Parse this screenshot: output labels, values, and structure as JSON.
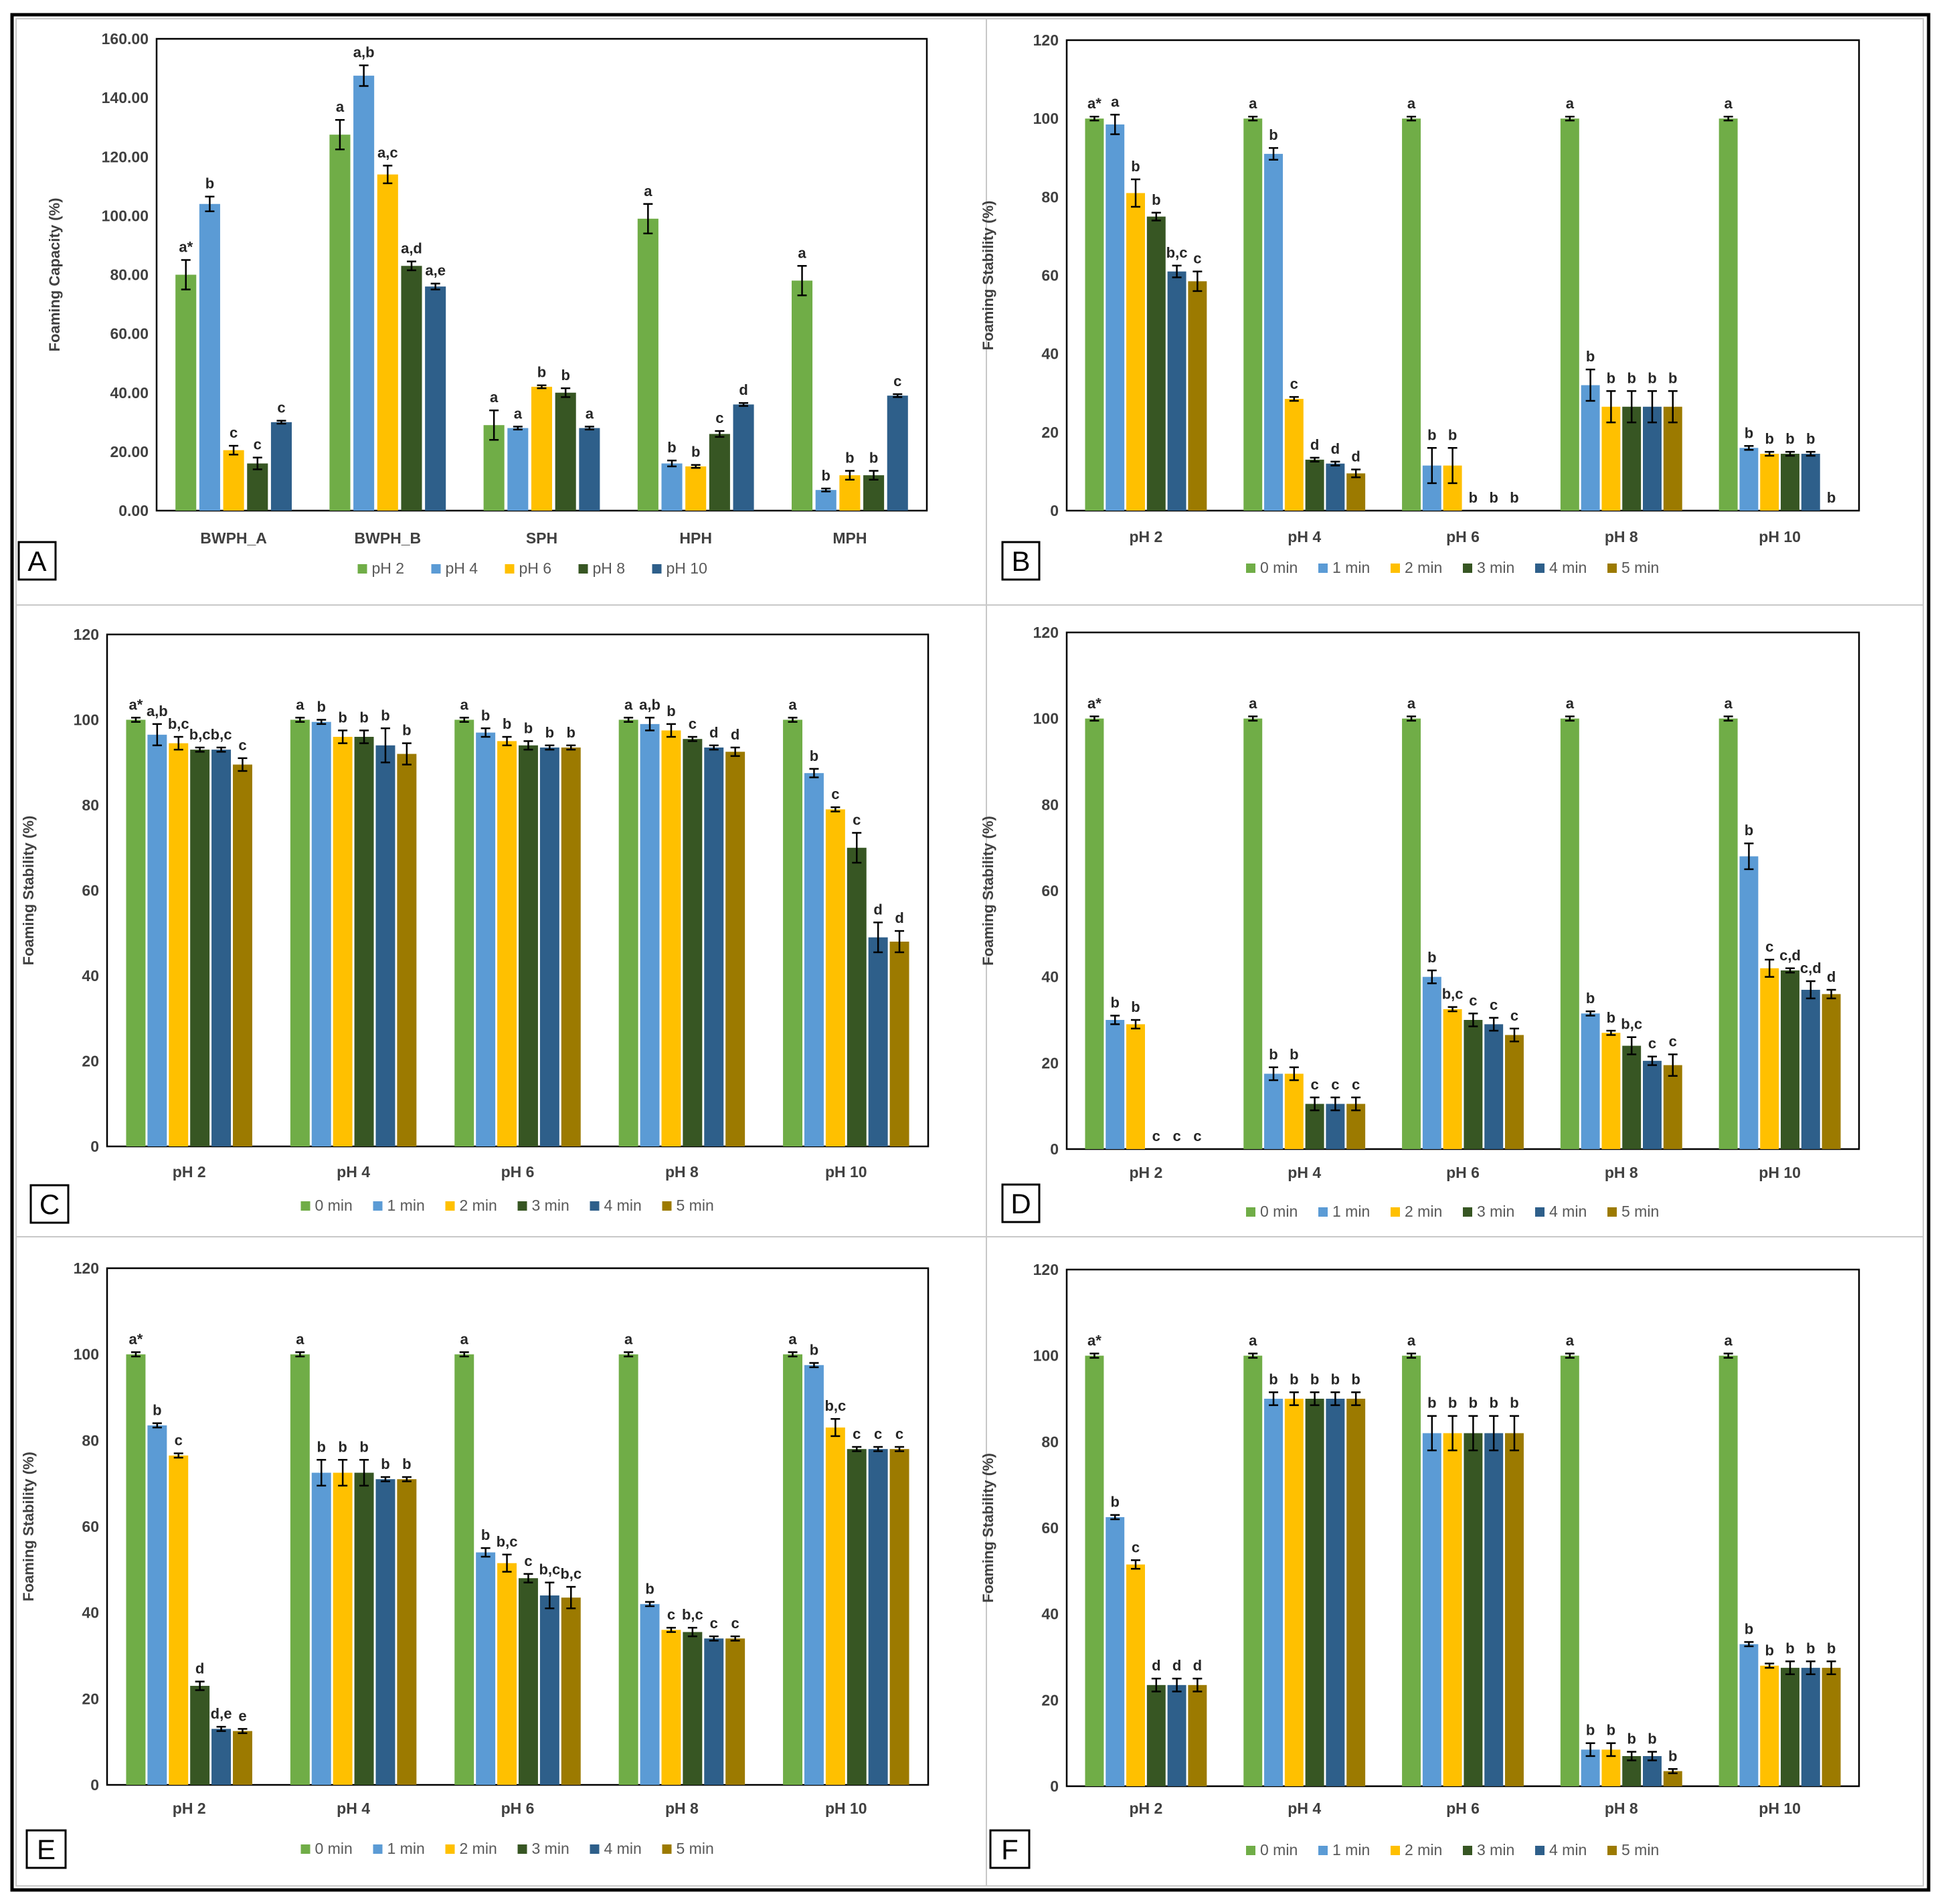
{
  "colors": {
    "pH 2": "#70ad47",
    "pH 4": "#5b9bd5",
    "pH 6": "#ffc000",
    "pH 8": "#375623",
    "pH 10": "#2e5f8a",
    "0 min": "#70ad47",
    "1 min": "#5b9bd5",
    "2 min": "#ffc000",
    "3 min": "#375623",
    "4 min": "#2e5f8a",
    "5 min": "#9c7a00"
  },
  "chart_data": [
    {
      "panel": "A",
      "type": "bar",
      "ylabel": "Foaming Capacity (%)",
      "ylim": [
        0,
        160
      ],
      "yticks": [
        "0.00",
        "20.00",
        "40.00",
        "60.00",
        "80.00",
        "100.00",
        "120.00",
        "140.00",
        "160.00"
      ],
      "categories": [
        "BWPH_A",
        "BWPH_B",
        "SPH",
        "HPH",
        "MPH"
      ],
      "series": [
        {
          "name": "pH 2",
          "values": [
            80,
            127.5,
            29,
            99,
            78
          ],
          "errors": [
            5,
            5,
            5,
            5,
            5
          ],
          "labels": [
            "a*",
            "a",
            "a",
            "a",
            "a"
          ]
        },
        {
          "name": "pH 4",
          "values": [
            104,
            147.5,
            28,
            16,
            7
          ],
          "errors": [
            2.5,
            3.5,
            0.5,
            1,
            0.5
          ],
          "labels": [
            "b",
            "a,b",
            "a",
            "b",
            "b"
          ]
        },
        {
          "name": "pH 6",
          "values": [
            20.5,
            114,
            42,
            15,
            12
          ],
          "errors": [
            1.5,
            3,
            0.5,
            0.5,
            1.5
          ],
          "labels": [
            "c",
            "a,c",
            "b",
            "b",
            "b"
          ]
        },
        {
          "name": "pH 8",
          "values": [
            16,
            83,
            40,
            26,
            12
          ],
          "errors": [
            2,
            1.5,
            1.5,
            1,
            1.5
          ],
          "labels": [
            "c",
            "a,d",
            "b",
            "c",
            "b"
          ]
        },
        {
          "name": "pH 10",
          "values": [
            30,
            76,
            28,
            36,
            39
          ],
          "errors": [
            0.5,
            1,
            0.5,
            0.5,
            0.5
          ],
          "labels": [
            "c",
            "a,e",
            "a",
            "d",
            "c"
          ]
        }
      ]
    },
    {
      "panel": "B",
      "type": "bar",
      "ylabel": "Foaming Stability (%)",
      "ylim": [
        0,
        120
      ],
      "yticks": [
        "0",
        "20",
        "40",
        "60",
        "80",
        "100",
        "120"
      ],
      "categories": [
        "pH 2",
        "pH 4",
        "pH 6",
        "pH 8",
        "pH 10"
      ],
      "series": [
        {
          "name": "0 min",
          "values": [
            100,
            100,
            100,
            100,
            100
          ],
          "errors": [
            0.5,
            0.5,
            0.5,
            0.5,
            0.5
          ],
          "labels": [
            "a*",
            "a",
            "a",
            "a",
            "a"
          ]
        },
        {
          "name": "1 min",
          "values": [
            98.5,
            91,
            11.5,
            32,
            16
          ],
          "errors": [
            2.5,
            1.5,
            4.5,
            4,
            0.5
          ],
          "labels": [
            "a",
            "b",
            "b",
            "b",
            "b"
          ]
        },
        {
          "name": "2 min",
          "values": [
            81,
            28.5,
            11.5,
            26.5,
            14.5
          ],
          "errors": [
            3.5,
            0.5,
            4.5,
            4,
            0.5
          ],
          "labels": [
            "b",
            "c",
            "b",
            "b",
            "b"
          ]
        },
        {
          "name": "3 min",
          "values": [
            75,
            13,
            0,
            26.5,
            14.5
          ],
          "errors": [
            1,
            0.5,
            0,
            4,
            0.5
          ],
          "labels": [
            "b",
            "d",
            "b",
            "b",
            "b"
          ]
        },
        {
          "name": "4 min",
          "values": [
            61,
            12,
            0,
            26.5,
            14.5
          ],
          "errors": [
            1.5,
            0.5,
            0,
            4,
            0.5
          ],
          "labels": [
            "b,c",
            "d",
            "b",
            "b",
            "b"
          ]
        },
        {
          "name": "5 min",
          "values": [
            58.5,
            9.5,
            0,
            26.5,
            0
          ],
          "errors": [
            2.5,
            1,
            0,
            4,
            0
          ],
          "labels": [
            "c",
            "d",
            "b",
            "b",
            "b"
          ]
        }
      ]
    },
    {
      "panel": "C",
      "type": "bar",
      "ylabel": "Foaming Stability (%)",
      "ylim": [
        0,
        120
      ],
      "yticks": [
        "0",
        "20",
        "40",
        "60",
        "80",
        "100",
        "120"
      ],
      "categories": [
        "pH 2",
        "pH 4",
        "pH 6",
        "pH 8",
        "pH 10"
      ],
      "series": [
        {
          "name": "0 min",
          "values": [
            100,
            100,
            100,
            100,
            100
          ],
          "errors": [
            0.5,
            0.5,
            0.5,
            0.5,
            0.5
          ],
          "labels": [
            "a*",
            "a",
            "a",
            "a",
            "a"
          ]
        },
        {
          "name": "1 min",
          "values": [
            96.5,
            99.5,
            97,
            99,
            87.5
          ],
          "errors": [
            2.5,
            0.5,
            1,
            1.5,
            1
          ],
          "labels": [
            "a,b",
            "b",
            "b",
            "a,b",
            "b"
          ]
        },
        {
          "name": "2 min",
          "values": [
            94.5,
            96,
            95,
            97.5,
            79
          ],
          "errors": [
            1.5,
            1.5,
            1,
            1.5,
            0.5
          ],
          "labels": [
            "b,c",
            "b",
            "b",
            "b",
            "c"
          ]
        },
        {
          "name": "3 min",
          "values": [
            93,
            96,
            94,
            95.5,
            70
          ],
          "errors": [
            0.5,
            1.5,
            1,
            0.5,
            3.5
          ],
          "labels": [
            "b,c",
            "b",
            "b",
            "c",
            "c"
          ]
        },
        {
          "name": "4 min",
          "values": [
            93,
            94,
            93.5,
            93.5,
            49
          ],
          "errors": [
            0.5,
            4,
            0.5,
            0.5,
            3.5
          ],
          "labels": [
            "b,c",
            "b",
            "b",
            "d",
            "d"
          ]
        },
        {
          "name": "5 min",
          "values": [
            89.5,
            92,
            93.5,
            92.5,
            48
          ],
          "errors": [
            1.5,
            2.5,
            0.5,
            1,
            2.5
          ],
          "labels": [
            "c",
            "b",
            "b",
            "d",
            "d"
          ]
        }
      ]
    },
    {
      "panel": "D",
      "type": "bar",
      "ylabel": "Foaming Stability (%)",
      "ylim": [
        0,
        120
      ],
      "yticks": [
        "0",
        "20",
        "40",
        "60",
        "80",
        "100",
        "120"
      ],
      "categories": [
        "pH 2",
        "pH 4",
        "pH 6",
        "pH 8",
        "pH 10"
      ],
      "series": [
        {
          "name": "0 min",
          "values": [
            100,
            100,
            100,
            100,
            100
          ],
          "errors": [
            0.5,
            0.5,
            0.5,
            0.5,
            0.5
          ],
          "labels": [
            "a*",
            "a",
            "a",
            "a",
            "a"
          ]
        },
        {
          "name": "1 min",
          "values": [
            30,
            17.5,
            40,
            31.5,
            68
          ],
          "errors": [
            1,
            1.5,
            1.5,
            0.5,
            3
          ],
          "labels": [
            "b",
            "b",
            "b",
            "b",
            "b"
          ]
        },
        {
          "name": "2 min",
          "values": [
            29,
            17.5,
            32.5,
            27,
            42
          ],
          "errors": [
            1,
            1.5,
            0.5,
            0.5,
            2
          ],
          "labels": [
            "b",
            "b",
            "b,c",
            "b",
            "c"
          ]
        },
        {
          "name": "3 min",
          "values": [
            0,
            10.5,
            30,
            24,
            41.5
          ],
          "errors": [
            0,
            1.5,
            1.5,
            2,
            0.5
          ],
          "labels": [
            "c",
            "c",
            "c",
            "b,c",
            "c,d"
          ]
        },
        {
          "name": "4 min",
          "values": [
            0,
            10.5,
            29,
            20.5,
            37
          ],
          "errors": [
            0,
            1.5,
            1.5,
            1,
            2
          ],
          "labels": [
            "c",
            "c",
            "c",
            "c",
            "c,d"
          ]
        },
        {
          "name": "5 min",
          "values": [
            0,
            10.5,
            26.5,
            19.5,
            36
          ],
          "errors": [
            0,
            1.5,
            1.5,
            2.5,
            1
          ],
          "labels": [
            "c",
            "c",
            "c",
            "c",
            "d"
          ]
        }
      ]
    },
    {
      "panel": "E",
      "type": "bar",
      "ylabel": "Foaming Stability (%)",
      "ylim": [
        0,
        120
      ],
      "yticks": [
        "0",
        "20",
        "40",
        "60",
        "80",
        "100",
        "120"
      ],
      "categories": [
        "pH 2",
        "pH 4",
        "pH 6",
        "pH 8",
        "pH 10"
      ],
      "series": [
        {
          "name": "0 min",
          "values": [
            100,
            100,
            100,
            100,
            100
          ],
          "errors": [
            0.5,
            0.5,
            0.5,
            0.5,
            0.5
          ],
          "labels": [
            "a*",
            "a",
            "a",
            "a",
            "a"
          ]
        },
        {
          "name": "1 min",
          "values": [
            83.5,
            72.5,
            54,
            42,
            97.5
          ],
          "errors": [
            0.5,
            3,
            1,
            0.5,
            0.5
          ],
          "labels": [
            "b",
            "b",
            "b",
            "b",
            "b"
          ]
        },
        {
          "name": "2 min",
          "values": [
            76.5,
            72.5,
            51.5,
            36,
            83
          ],
          "errors": [
            0.5,
            3,
            2,
            0.5,
            2
          ],
          "labels": [
            "c",
            "b",
            "b,c",
            "c",
            "b,c"
          ]
        },
        {
          "name": "3 min",
          "values": [
            23,
            72.5,
            48,
            35.5,
            78
          ],
          "errors": [
            1,
            3,
            1,
            1,
            0.5
          ],
          "labels": [
            "d",
            "b",
            "c",
            "b,c",
            "c"
          ]
        },
        {
          "name": "4 min",
          "values": [
            13,
            71,
            44,
            34,
            78
          ],
          "errors": [
            0.5,
            0.5,
            3,
            0.5,
            0.5
          ],
          "labels": [
            "d,e",
            "b",
            "b,c",
            "c",
            "c"
          ]
        },
        {
          "name": "5 min",
          "values": [
            12.5,
            71,
            43.5,
            34,
            78
          ],
          "errors": [
            0.5,
            0.5,
            2.5,
            0.5,
            0.5
          ],
          "labels": [
            "e",
            "b",
            "b,c",
            "c",
            "c"
          ]
        }
      ]
    },
    {
      "panel": "F",
      "type": "bar",
      "ylabel": "Foaming Stability (%)",
      "ylim": [
        0,
        120
      ],
      "yticks": [
        "0",
        "20",
        "40",
        "60",
        "80",
        "100",
        "120"
      ],
      "categories": [
        "pH 2",
        "pH 4",
        "pH 6",
        "pH 8",
        "pH 10"
      ],
      "series": [
        {
          "name": "0 min",
          "values": [
            100,
            100,
            100,
            100,
            100
          ],
          "errors": [
            0.5,
            0.5,
            0.5,
            0.5,
            0.5
          ],
          "labels": [
            "a*",
            "a",
            "a",
            "a",
            "a"
          ]
        },
        {
          "name": "1 min",
          "values": [
            62.5,
            90,
            82,
            8.5,
            33
          ],
          "errors": [
            0.5,
            1.5,
            4,
            1.5,
            0.5
          ],
          "labels": [
            "b",
            "b",
            "b",
            "b",
            "b"
          ]
        },
        {
          "name": "2 min",
          "values": [
            51.5,
            90,
            82,
            8.5,
            28
          ],
          "errors": [
            1,
            1.5,
            4,
            1.5,
            0.5
          ],
          "labels": [
            "c",
            "b",
            "b",
            "b",
            "b"
          ]
        },
        {
          "name": "3 min",
          "values": [
            23.5,
            90,
            82,
            7,
            27.5
          ],
          "errors": [
            1.5,
            1.5,
            4,
            1,
            1.5
          ],
          "labels": [
            "d",
            "b",
            "b",
            "b",
            "b"
          ]
        },
        {
          "name": "4 min",
          "values": [
            23.5,
            90,
            82,
            7,
            27.5
          ],
          "errors": [
            1.5,
            1.5,
            4,
            1,
            1.5
          ],
          "labels": [
            "d",
            "b",
            "b",
            "b",
            "b"
          ]
        },
        {
          "name": "5 min",
          "values": [
            23.5,
            90,
            82,
            3.5,
            27.5
          ],
          "errors": [
            1.5,
            1.5,
            4,
            0.5,
            1.5
          ],
          "labels": [
            "d",
            "b",
            "b",
            "b",
            "b"
          ]
        }
      ]
    }
  ]
}
